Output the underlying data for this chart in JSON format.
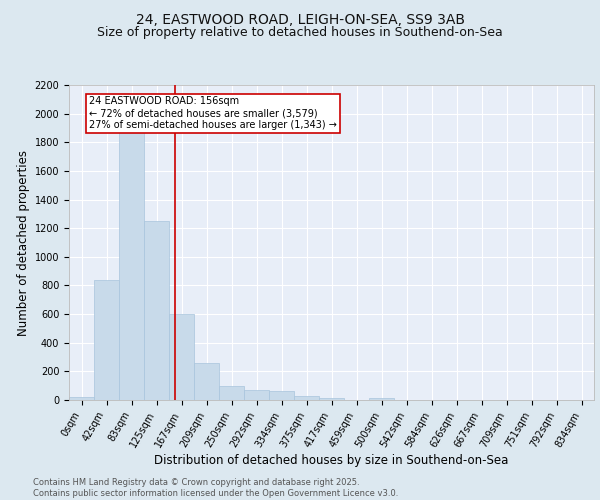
{
  "title_line1": "24, EASTWOOD ROAD, LEIGH-ON-SEA, SS9 3AB",
  "title_line2": "Size of property relative to detached houses in Southend-on-Sea",
  "xlabel": "Distribution of detached houses by size in Southend-on-Sea",
  "ylabel": "Number of detached properties",
  "bar_color": "#c8daea",
  "bar_edge_color": "#a8c4dc",
  "background_color": "#e8eef8",
  "grid_color": "#ffffff",
  "annotation_text": "24 EASTWOOD ROAD: 156sqm\n← 72% of detached houses are smaller (3,579)\n27% of semi-detached houses are larger (1,343) →",
  "vline_color": "#cc0000",
  "annotation_box_color": "#cc0000",
  "categories": [
    "0sqm",
    "42sqm",
    "83sqm",
    "125sqm",
    "167sqm",
    "209sqm",
    "250sqm",
    "292sqm",
    "334sqm",
    "375sqm",
    "417sqm",
    "459sqm",
    "500sqm",
    "542sqm",
    "584sqm",
    "626sqm",
    "667sqm",
    "709sqm",
    "751sqm",
    "792sqm",
    "834sqm"
  ],
  "values": [
    20,
    840,
    1870,
    1250,
    600,
    255,
    100,
    72,
    62,
    25,
    15,
    0,
    15,
    0,
    0,
    0,
    0,
    0,
    0,
    0,
    0
  ],
  "ylim": [
    0,
    2200
  ],
  "yticks": [
    0,
    200,
    400,
    600,
    800,
    1000,
    1200,
    1400,
    1600,
    1800,
    2000,
    2200
  ],
  "footer_line1": "Contains HM Land Registry data © Crown copyright and database right 2025.",
  "footer_line2": "Contains public sector information licensed under the Open Government Licence v3.0.",
  "title_fontsize": 10,
  "subtitle_fontsize": 9,
  "tick_fontsize": 7,
  "label_fontsize": 8.5,
  "footer_fontsize": 6
}
